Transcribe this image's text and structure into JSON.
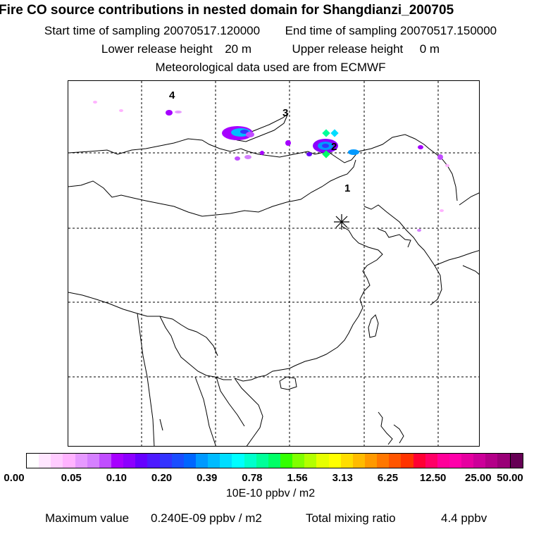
{
  "header": {
    "title": "Fire CO source contributions in nested domain for Shangdianzi_200705",
    "start_label": "Start time of sampling",
    "start_value": "20070517.120000",
    "end_label": "End time of sampling",
    "end_value": "20070517.150000",
    "lower_label": "Lower release height",
    "lower_value": "20 m",
    "upper_label": "Upper release height",
    "upper_value": "0 m",
    "met_line": "Meteorological data used are from ECMWF"
  },
  "map": {
    "track_labels": [
      "1",
      "2",
      "3",
      "4"
    ]
  },
  "colorbar": {
    "labels": [
      "0.00",
      "0.05",
      "0.10",
      "0.20",
      "0.39",
      "0.78",
      "1.56",
      "3.13",
      "6.25",
      "12.50",
      "25.00",
      "50.00"
    ],
    "unit": "10E-10 ppbv / m2",
    "colors": [
      "#ffffff",
      "#ffe6ff",
      "#ffccff",
      "#ffb3ff",
      "#e699ff",
      "#d580ff",
      "#c04dff",
      "#a600ff",
      "#8c00ff",
      "#6600ff",
      "#4d1aff",
      "#3333ff",
      "#1a4dff",
      "#0066ff",
      "#0099ff",
      "#00bbff",
      "#00ddff",
      "#00ffff",
      "#00ffcc",
      "#00ff99",
      "#00ff66",
      "#33ff00",
      "#80ff00",
      "#b3ff00",
      "#e6ff00",
      "#ffff00",
      "#ffdd00",
      "#ffbb00",
      "#ff9900",
      "#ff7700",
      "#ff5500",
      "#ff3300",
      "#ff0033",
      "#ff0066",
      "#ff0099",
      "#ff00aa",
      "#e600a0",
      "#cc0099",
      "#b30088",
      "#990077",
      "#660055"
    ]
  },
  "footer": {
    "max_label": "Maximum value",
    "max_value": "0.240E-09 ppbv / m2",
    "total_label": "Total mixing ratio",
    "total_value": "4.4 ppbv"
  }
}
